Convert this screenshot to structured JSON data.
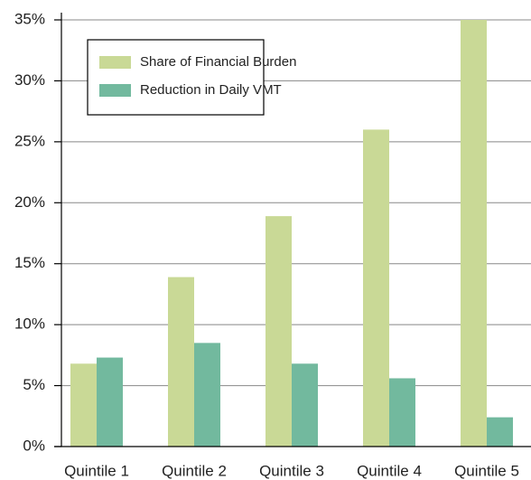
{
  "chart_data": {
    "type": "bar",
    "categories": [
      "Quintile 1",
      "Quintile 2",
      "Quintile 3",
      "Quintile 4",
      "Quintile 5"
    ],
    "series": [
      {
        "name": "Share of Financial Burden",
        "color": "#c9d996",
        "values": [
          6.8,
          13.9,
          18.9,
          26.0,
          35.0
        ]
      },
      {
        "name": "Reduction in Daily VMT",
        "color": "#72b99e",
        "values": [
          7.3,
          8.5,
          6.8,
          5.6,
          2.4
        ]
      }
    ],
    "ylim": [
      0,
      35
    ],
    "yticks": [
      {
        "value": 0,
        "label": "0%"
      },
      {
        "value": 5,
        "label": "5%"
      },
      {
        "value": 10,
        "label": "10%"
      },
      {
        "value": 15,
        "label": "15%"
      },
      {
        "value": 20,
        "label": "20%"
      },
      {
        "value": 25,
        "label": "25%"
      },
      {
        "value": 30,
        "label": "30%"
      },
      {
        "value": 35,
        "label": "35%"
      }
    ],
    "grid": true,
    "legend": "upper left"
  }
}
